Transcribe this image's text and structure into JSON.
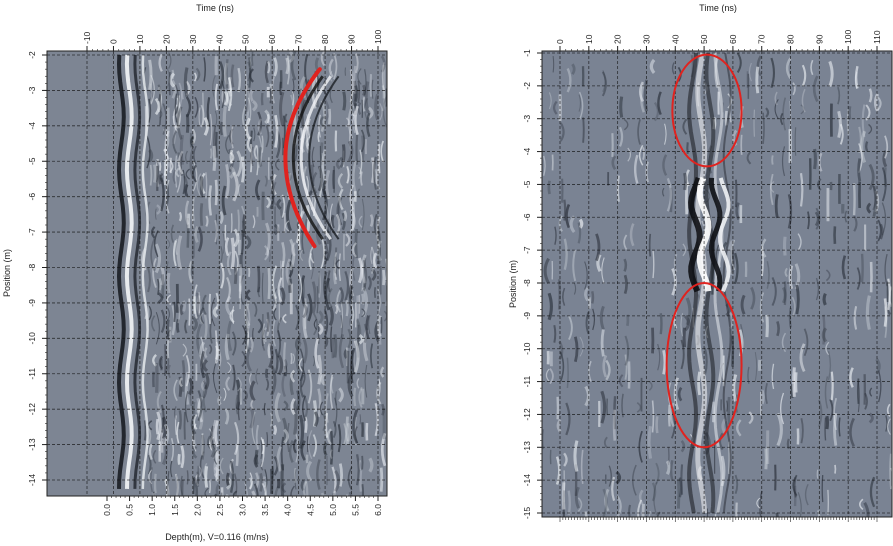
{
  "chart_data": [
    {
      "type": "heatmap",
      "top_axis_label": "Time (ns)",
      "ylabel": "Position (m)",
      "bottom_axis_label": "Depth(m), V=0.116 (m/ns)",
      "time_ticks": [
        "-10",
        "0",
        "10",
        "20",
        "30",
        "40",
        "50",
        "60",
        "70",
        "80",
        "90",
        "100"
      ],
      "position_ticks": [
        "-2",
        "-3",
        "-4",
        "-5",
        "-6",
        "-7",
        "-8",
        "-9",
        "-10",
        "-11",
        "-12",
        "-13",
        "-14"
      ],
      "depth_ticks": [
        "0.0",
        "0.5",
        "1.0",
        "1.5",
        "2.0",
        "2.5",
        "3.0",
        "3.5",
        "4.0",
        "4.5",
        "5.0",
        "5.5",
        "6.0"
      ],
      "grid": true,
      "annotations": [
        {
          "kind": "hyperbola",
          "color": "#e0231f",
          "apex_time_ns": 65,
          "apex_position_m": -4.9,
          "top_time_ns": 78,
          "top_position_m": -2.4,
          "bottom_time_ns": 76,
          "bottom_position_m": -7.4
        }
      ]
    },
    {
      "type": "heatmap",
      "top_axis_label": "Time (ns)",
      "ylabel": "Position (m)",
      "time_ticks": [
        "0",
        "10",
        "20",
        "30",
        "40",
        "50",
        "60",
        "70",
        "80",
        "90",
        "100",
        "110"
      ],
      "position_ticks": [
        "-1",
        "-2",
        "-3",
        "-4",
        "-5",
        "-6",
        "-7",
        "-8",
        "-9",
        "-10",
        "-11",
        "-12",
        "-13",
        "-14",
        "-15"
      ],
      "grid": true,
      "annotations": [
        {
          "kind": "ellipse",
          "color": "#e0231f",
          "center_time_ns": 51,
          "center_position_m": -2.75,
          "half_width_ns": 12,
          "half_height_m": 1.7
        },
        {
          "kind": "ellipse",
          "color": "#e0231f",
          "center_time_ns": 50,
          "center_position_m": -10.5,
          "half_width_ns": 13,
          "half_height_m": 2.5
        }
      ]
    }
  ]
}
